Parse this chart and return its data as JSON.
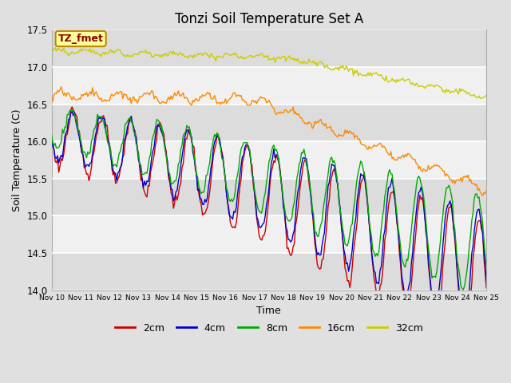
{
  "title": "Tonzi Soil Temperature Set A",
  "xlabel": "Time",
  "ylabel": "Soil Temperature (C)",
  "ylim": [
    14.0,
    17.5
  ],
  "xlim": [
    0,
    360
  ],
  "annotation_text": "TZ_fmet",
  "annotation_color": "#8B0000",
  "annotation_bg": "#FFFF99",
  "annotation_border": "#BB8800",
  "tick_labels": [
    "Nov 10",
    "Nov 11",
    "Nov 12",
    "Nov 13",
    "Nov 14",
    "Nov 15",
    "Nov 16",
    "Nov 17",
    "Nov 18",
    "Nov 19",
    "Nov 20",
    "Nov 21",
    "Nov 22",
    "Nov 23",
    "Nov 24",
    "Nov 25"
  ],
  "tick_positions": [
    0,
    24,
    48,
    72,
    96,
    120,
    144,
    168,
    192,
    216,
    240,
    264,
    288,
    312,
    336,
    360
  ],
  "yticks": [
    14.0,
    14.5,
    15.0,
    15.5,
    16.0,
    16.5,
    17.0,
    17.5
  ],
  "colors": {
    "2cm": "#CC0000",
    "4cm": "#0000CC",
    "8cm": "#00AA00",
    "16cm": "#FF8800",
    "32cm": "#CCCC00"
  },
  "linewidth": 1.0,
  "bg_color": "#E0E0E0",
  "plot_bg": "#F0F0F0",
  "grid_color": "white"
}
